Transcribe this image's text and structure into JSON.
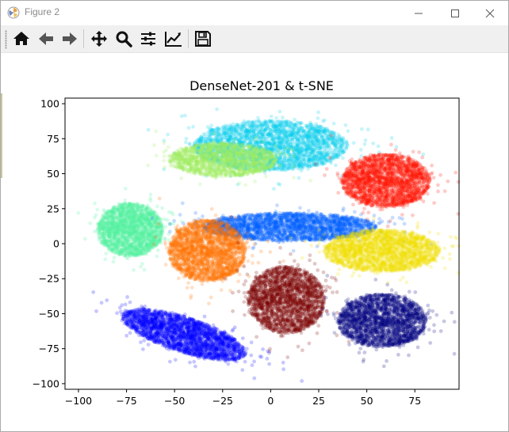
{
  "window": {
    "title": "Figure 2"
  },
  "titlebar_icons": {
    "app": "matplotlib-logo-icon",
    "minimize": "minimize-icon",
    "maximize": "maximize-icon",
    "close": "close-icon"
  },
  "toolbar": {
    "items": [
      "home-icon",
      "back-arrow-icon",
      "forward-arrow-icon",
      "pan-move-icon",
      "zoom-magnifier-icon",
      "configure-subplots-icon",
      "edit-axis-icon",
      "save-disk-icon"
    ]
  },
  "chart_data": {
    "type": "scatter",
    "title": "DenseNet-201 & t-SNE",
    "xlabel": "",
    "ylabel": "",
    "xlim": [
      -107,
      98
    ],
    "ylim": [
      -104,
      104
    ],
    "xticks": [
      -100,
      -75,
      -50,
      -25,
      0,
      25,
      50,
      75
    ],
    "yticks": [
      100,
      75,
      50,
      25,
      0,
      -25,
      -50,
      -75,
      -100
    ],
    "grid": false,
    "legend": "none",
    "series": [
      {
        "color": "#00cfef",
        "cx": 0,
        "cy": 70,
        "rx": 40,
        "ry": 18,
        "n": 2500
      },
      {
        "color": "#a0ef60",
        "cx": -25,
        "cy": 60,
        "rx": 28,
        "ry": 12,
        "n": 1700
      },
      {
        "color": "#ff1000",
        "cx": 60,
        "cy": 45,
        "rx": 23,
        "ry": 19,
        "n": 2200
      },
      {
        "color": "#50f0a0",
        "cx": -73,
        "cy": 10,
        "rx": 17,
        "ry": 19,
        "n": 2000
      },
      {
        "color": "#0060ff",
        "cx": 10,
        "cy": 12,
        "rx": 45,
        "ry": 10,
        "n": 2500
      },
      {
        "color": "#ff7000",
        "cx": -33,
        "cy": -5,
        "rx": 20,
        "ry": 22,
        "n": 2200
      },
      {
        "color": "#f0e000",
        "cx": 58,
        "cy": -5,
        "rx": 30,
        "ry": 15,
        "n": 2200
      },
      {
        "color": "#7a0000",
        "cx": 8,
        "cy": -40,
        "rx": 20,
        "ry": 24,
        "n": 2200
      },
      {
        "color": "#000080",
        "cx": 58,
        "cy": -55,
        "rx": 23,
        "ry": 19,
        "n": 2200
      },
      {
        "color": "#0000ff",
        "cx": -45,
        "cy": -65,
        "rx": 35,
        "ry": 12,
        "rot": -25,
        "n": 2500
      }
    ]
  }
}
